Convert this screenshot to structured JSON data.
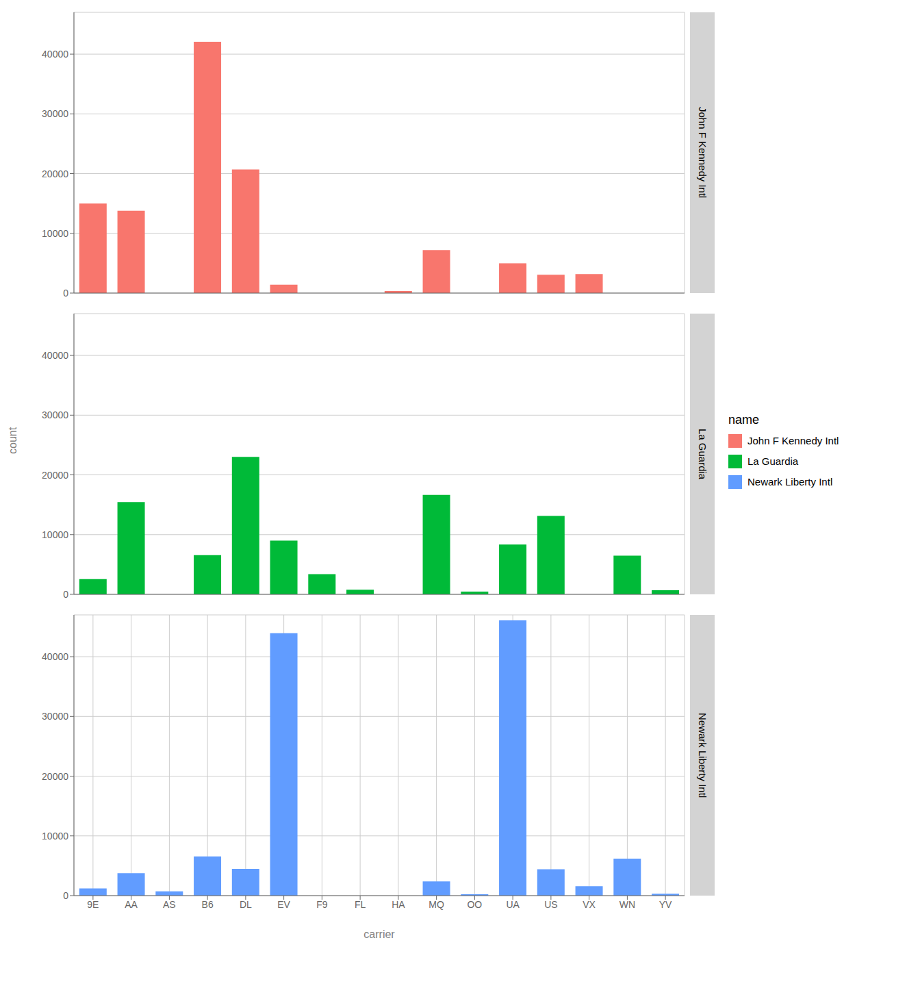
{
  "chart_data": [
    {
      "type": "bar",
      "title": "John F Kennedy Intl",
      "categories": [
        "9E",
        "AA",
        "AS",
        "B6",
        "DL",
        "EV",
        "F9",
        "FL",
        "HA",
        "MQ",
        "OO",
        "UA",
        "US",
        "VX",
        "WN",
        "YV"
      ],
      "series": [
        {
          "name": "John F Kennedy Intl",
          "color": "#F8766D",
          "values": [
            14990,
            13783,
            0,
            42076,
            20701,
            1408,
            0,
            0,
            342,
            7193,
            0,
            4986,
            3073,
            3170,
            0,
            0
          ]
        }
      ],
      "ylim": [
        0,
        47000
      ],
      "yticks": [
        0,
        10000,
        20000,
        30000,
        40000
      ],
      "grid": true,
      "tick_labels": "y"
    },
    {
      "type": "bar",
      "title": "La Guardia",
      "categories": [
        "9E",
        "AA",
        "AS",
        "B6",
        "DL",
        "EV",
        "F9",
        "FL",
        "HA",
        "MQ",
        "OO",
        "UA",
        "US",
        "VX",
        "WN",
        "YV"
      ],
      "series": [
        {
          "name": "La Guardia",
          "color": "#00BA38",
          "values": [
            2541,
            15459,
            0,
            6557,
            23002,
            9005,
            3382,
            782,
            0,
            16654,
            460,
            8345,
            13136,
            0,
            6476,
            675
          ]
        }
      ],
      "ylabel": "count",
      "legend": "right",
      "legend_title": "name",
      "ylim": [
        0,
        47000
      ],
      "yticks": [
        0,
        10000,
        20000,
        30000,
        40000
      ],
      "grid": true,
      "tick_labels": "y"
    },
    {
      "type": "bar",
      "title": "Newark Liberty Intl",
      "categories": [
        "9E",
        "AA",
        "AS",
        "B6",
        "DL",
        "EV",
        "F9",
        "FL",
        "HA",
        "MQ",
        "OO",
        "UA",
        "US",
        "VX",
        "WN",
        "YV"
      ],
      "series": [
        {
          "name": "Newark Liberty Intl",
          "color": "#619CFF",
          "values": [
            1199,
            3748,
            714,
            6557,
            4474,
            43939,
            0,
            0,
            0,
            2378,
            220,
            46087,
            4405,
            1566,
            6188,
            307
          ]
        }
      ],
      "xlabel": "carrier",
      "ylim": [
        0,
        47000
      ],
      "yticks": [
        0,
        10000,
        20000,
        30000,
        40000
      ],
      "grid": true
    }
  ]
}
